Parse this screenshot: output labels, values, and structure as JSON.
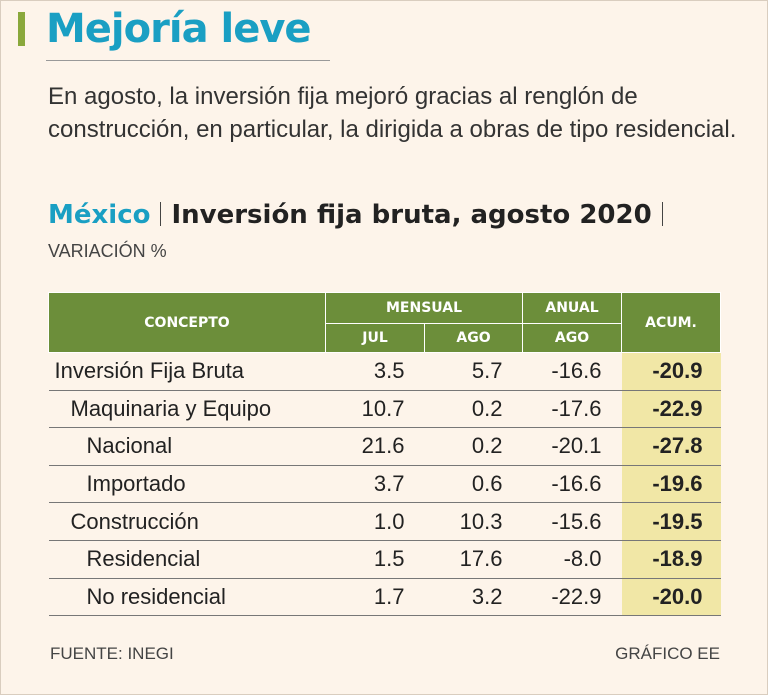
{
  "header": {
    "title": "Mejoría leve",
    "description": "En agosto, la inversión fija mejoró gracias al renglón de construcción, en particular, la dirigida a obras de tipo residencial.",
    "country": "México",
    "subtitle": "Inversión fija bruta, agosto 2020",
    "unit": "VARIACIÓN %"
  },
  "table": {
    "headers": {
      "concept": "CONCEPTO",
      "monthly": "MENSUAL",
      "annual": "ANUAL",
      "cumulative": "ACUM.",
      "jul": "JUL",
      "aug": "AGO",
      "aug_annual": "AGO"
    },
    "rows": [
      [
        "Inversión Fija Bruta",
        "3.5",
        "5.7",
        "-16.6",
        "-20.9"
      ],
      [
        "Maquinaria y Equipo",
        "10.7",
        "0.2",
        "-17.6",
        "-22.9"
      ],
      [
        "Nacional",
        "21.6",
        "0.2",
        "-20.1",
        "-27.8"
      ],
      [
        "Importado",
        "3.7",
        "0.6",
        "-16.6",
        "-19.6"
      ],
      [
        "Construcción",
        "1.0",
        "10.3",
        "-15.6",
        "-19.5"
      ],
      [
        "Residencial",
        "1.5",
        "17.6",
        "-8.0",
        "-18.9"
      ],
      [
        "No residencial",
        "1.7",
        "3.2",
        "-22.9",
        "-20.0"
      ]
    ]
  },
  "footer": {
    "source": "FUENTE: INEGI",
    "credit": "GRÁFICO EE"
  }
}
